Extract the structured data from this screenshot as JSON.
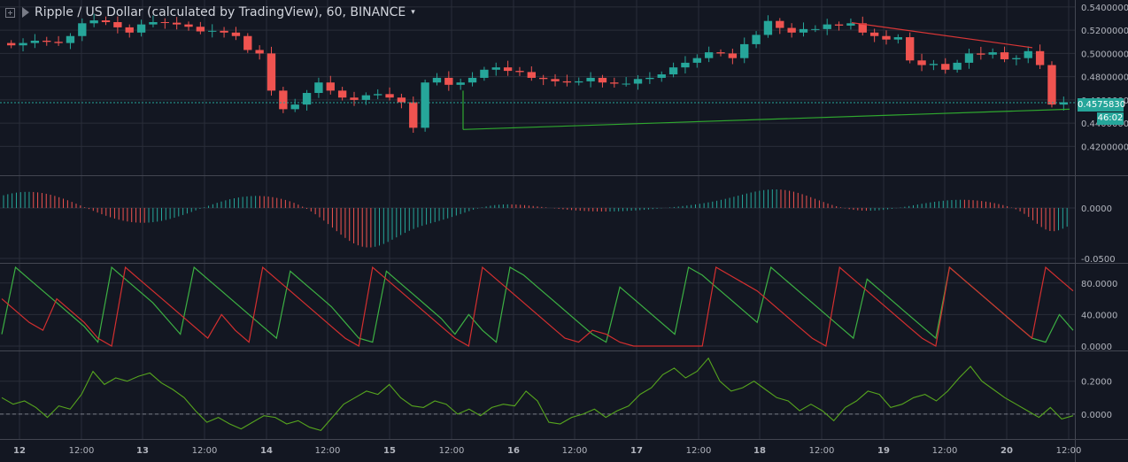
{
  "header": {
    "symbol": "Ripple / US Dollar (calculated by TradingView), 60, BINANCE",
    "caret": "▾"
  },
  "colors": {
    "background": "#131722",
    "grid": "#2a2e39",
    "up": "#26a69a",
    "down": "#ef5350",
    "histogram_up": "#26a69a",
    "histogram_down": "#ef5350",
    "aroon_up": "#3cb043",
    "aroon_down": "#d32f2f",
    "oscillator": "#56a51e",
    "trend_support": "#2fa82f",
    "trend_resistance": "#d93636",
    "price_line": "#26a69a"
  },
  "current": {
    "price_label": "0.4575830",
    "countdown": "46:02"
  },
  "chart_data": [
    {
      "type": "candlestick",
      "pane": "price",
      "title": "Ripple / US Dollar (calculated by TradingView), 60, BINANCE",
      "ylim": [
        0.4035,
        0.543
      ],
      "y_ticks": [
        "0.5400000",
        "0.5200000",
        "0.5000000",
        "0.4800000",
        "0.4600000",
        "0.4400000",
        "0.4200000"
      ],
      "close_approx": [
        0.507,
        0.509,
        0.511,
        0.51,
        0.509,
        0.515,
        0.526,
        0.5285,
        0.527,
        0.5225,
        0.518,
        0.525,
        0.527,
        0.5265,
        0.525,
        0.523,
        0.519,
        0.5195,
        0.518,
        0.515,
        0.503,
        0.5,
        0.468,
        0.452,
        0.456,
        0.466,
        0.475,
        0.468,
        0.462,
        0.46,
        0.464,
        0.465,
        0.462,
        0.458,
        0.436,
        0.475,
        0.479,
        0.473,
        0.475,
        0.479,
        0.486,
        0.488,
        0.485,
        0.484,
        0.479,
        0.478,
        0.476,
        0.475,
        0.476,
        0.479,
        0.475,
        0.474,
        0.474,
        0.478,
        0.479,
        0.482,
        0.488,
        0.492,
        0.496,
        0.501,
        0.5,
        0.496,
        0.508,
        0.516,
        0.528,
        0.522,
        0.518,
        0.521,
        0.521,
        0.525,
        0.524,
        0.526,
        0.518,
        0.515,
        0.512,
        0.514,
        0.494,
        0.49,
        0.491,
        0.486,
        0.492,
        0.5,
        0.499,
        0.501,
        0.495,
        0.496,
        0.502,
        0.49,
        0.456,
        0.458
      ],
      "trendlines": [
        {
          "type": "support",
          "from": {
            "x": "15 12:30",
            "y": 0.4345
          },
          "to": {
            "x": "20 16:30",
            "y": 0.452
          }
        },
        {
          "type": "resistance",
          "from": {
            "x": "18 19:00",
            "y": 0.5265
          },
          "to": {
            "x": "20 12:00",
            "y": 0.505
          }
        }
      ],
      "last_price": 0.457583
    },
    {
      "type": "histogram",
      "pane": "oscillator-histogram",
      "ylim": [
        -0.05,
        0.028
      ],
      "y_ticks": [
        "0.0000",
        "-0.0500"
      ]
    },
    {
      "type": "line",
      "pane": "aroon",
      "ylim": [
        0,
        100
      ],
      "y_ticks": [
        "80.0000",
        "40.0000",
        "0.0000"
      ],
      "series": [
        {
          "color": "green",
          "values": [
            15,
            100,
            85,
            70,
            55,
            40,
            25,
            5,
            100,
            85,
            70,
            55,
            35,
            15,
            100,
            85,
            70,
            55,
            40,
            25,
            10,
            95,
            80,
            65,
            50,
            30,
            10,
            5,
            95,
            80,
            65,
            50,
            35,
            15,
            40,
            20,
            5,
            100,
            90,
            75,
            60,
            45,
            30,
            15,
            5,
            75,
            60,
            45,
            30,
            15,
            100,
            90,
            75,
            60,
            45,
            30,
            100,
            85,
            70,
            55,
            40,
            25,
            10,
            85,
            70,
            55,
            40,
            25,
            10,
            100,
            85,
            70,
            55,
            40,
            25,
            10,
            5,
            40,
            20
          ]
        },
        {
          "color": "red",
          "values": [
            60,
            45,
            30,
            20,
            60,
            45,
            30,
            10,
            0,
            100,
            85,
            70,
            55,
            40,
            25,
            10,
            40,
            20,
            5,
            100,
            85,
            70,
            55,
            40,
            25,
            10,
            0,
            100,
            85,
            70,
            55,
            40,
            25,
            10,
            0,
            100,
            85,
            70,
            55,
            40,
            25,
            10,
            5,
            20,
            15,
            5,
            0,
            0,
            0,
            0,
            0,
            0,
            100,
            90,
            80,
            70,
            55,
            40,
            25,
            10,
            0,
            100,
            85,
            70,
            55,
            40,
            25,
            10,
            0,
            100,
            85,
            70,
            55,
            40,
            25,
            10,
            100,
            85,
            70
          ]
        }
      ]
    },
    {
      "type": "line",
      "pane": "oscillator-line",
      "ylim": [
        -0.13,
        0.36
      ],
      "y_ticks": [
        "0.2000",
        "0.0000"
      ],
      "series": [
        {
          "color": "green",
          "values": [
            0.1,
            0.06,
            0.08,
            0.04,
            -0.02,
            0.05,
            0.03,
            0.12,
            0.26,
            0.18,
            0.22,
            0.2,
            0.23,
            0.25,
            0.19,
            0.15,
            0.1,
            0.02,
            -0.05,
            -0.02,
            -0.06,
            -0.09,
            -0.05,
            -0.01,
            -0.02,
            -0.06,
            -0.04,
            -0.08,
            -0.1,
            -0.02,
            0.06,
            0.1,
            0.14,
            0.12,
            0.18,
            0.1,
            0.05,
            0.04,
            0.08,
            0.06,
            0.0,
            0.03,
            -0.01,
            0.04,
            0.06,
            0.05,
            0.14,
            0.08,
            -0.05,
            -0.06,
            -0.02,
            0.0,
            0.03,
            -0.02,
            0.02,
            0.05,
            0.12,
            0.16,
            0.24,
            0.28,
            0.22,
            0.26,
            0.34,
            0.2,
            0.14,
            0.16,
            0.2,
            0.15,
            0.1,
            0.08,
            0.02,
            0.06,
            0.02,
            -0.04,
            0.04,
            0.08,
            0.14,
            0.12,
            0.04,
            0.06,
            0.1,
            0.12,
            0.08,
            0.14,
            0.22,
            0.29,
            0.2,
            0.15,
            0.1,
            0.06,
            0.02,
            -0.02,
            0.04,
            -0.03,
            -0.01
          ]
        }
      ]
    }
  ],
  "x_axis": {
    "labels": [
      "12",
      "12:00",
      "13",
      "12:00",
      "14",
      "12:00",
      "15",
      "12:00",
      "16",
      "12:00",
      "17",
      "12:00",
      "18",
      "12:00",
      "19",
      "12:00",
      "20",
      "12:00"
    ]
  }
}
